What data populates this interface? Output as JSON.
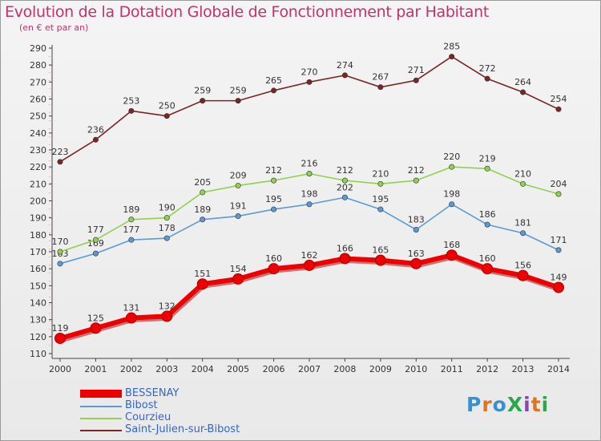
{
  "title": "Evolution de la Dotation Globale de Fonctionnement par Habitant",
  "subtitle": "(en € et par an)",
  "logo_text": "ProXiti",
  "chart_data": {
    "type": "line",
    "title": "Evolution de la Dotation Globale de Fonctionnement par Habitant",
    "subtitle": "(en € et par an)",
    "x": [
      2000,
      2001,
      2002,
      2003,
      2004,
      2005,
      2006,
      2007,
      2008,
      2009,
      2010,
      2011,
      2012,
      2013,
      2014
    ],
    "ylim": [
      110,
      290
    ],
    "yticks": [
      110,
      120,
      130,
      140,
      150,
      160,
      170,
      180,
      190,
      200,
      210,
      220,
      230,
      240,
      250,
      260,
      270,
      280,
      290
    ],
    "grid": false,
    "legend_position": "bottom-left",
    "series": [
      {
        "name": "BESSENAY",
        "color": "#ee0000",
        "thick": true,
        "values": [
          119,
          125,
          131,
          132,
          151,
          154,
          160,
          162,
          166,
          165,
          163,
          168,
          160,
          156,
          149
        ]
      },
      {
        "name": "Bibost",
        "color": "#5b9bd5",
        "thick": false,
        "values": [
          163,
          169,
          177,
          178,
          189,
          191,
          195,
          198,
          202,
          195,
          183,
          198,
          186,
          181,
          171
        ]
      },
      {
        "name": "Courzieu",
        "color": "#92d050",
        "thick": false,
        "values": [
          170,
          177,
          189,
          190,
          205,
          209,
          212,
          216,
          212,
          210,
          212,
          220,
          219,
          210,
          204
        ]
      },
      {
        "name": "Saint-Julien-sur-Bibost",
        "color": "#7b2525",
        "thick": false,
        "values": [
          223,
          236,
          253,
          250,
          259,
          259,
          265,
          270,
          274,
          267,
          271,
          285,
          272,
          264,
          254
        ]
      }
    ]
  }
}
